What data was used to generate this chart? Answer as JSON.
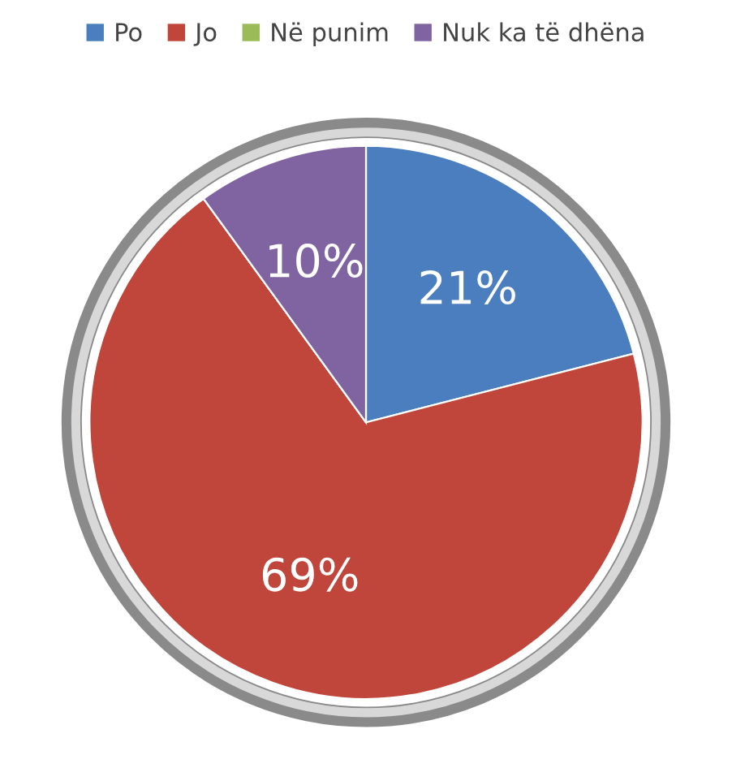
{
  "chart_data": {
    "type": "pie",
    "categories": [
      "Po",
      "Jo",
      "Në punim",
      "Nuk ka të dhëna"
    ],
    "values": [
      21,
      69,
      0,
      10
    ],
    "colors": [
      "#4a7ebf",
      "#c0453a",
      "#9bbb59",
      "#8064a2"
    ],
    "value_labels": [
      "21%",
      "69%",
      null,
      "10%"
    ],
    "legend": "top"
  }
}
